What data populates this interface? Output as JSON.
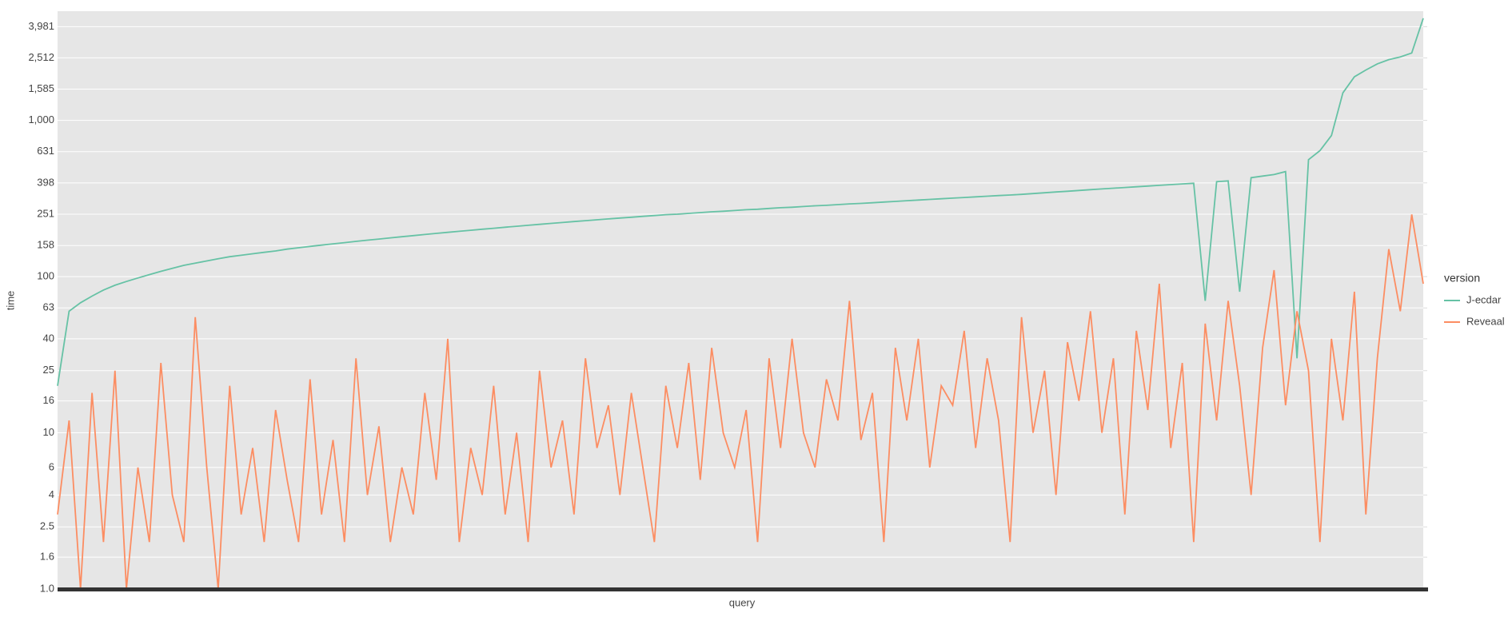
{
  "chart_data": {
    "type": "line",
    "x_label": "query",
    "y_label": "time",
    "legend_title": "version",
    "log_scale": true,
    "grid": true,
    "ylim": [
      1,
      5000
    ],
    "yticks": [
      {
        "value": 1,
        "label": "1.0"
      },
      1.6,
      2.5,
      4,
      6,
      10,
      16,
      25,
      40,
      63,
      100,
      158,
      251,
      398,
      631,
      {
        "value": 1000,
        "label": "1,000"
      },
      {
        "value": 1585,
        "label": "1,585"
      },
      {
        "value": 2512,
        "label": "2,512"
      },
      {
        "value": 3981,
        "label": "3,981"
      }
    ],
    "categories": [
      null,
      null,
      null,
      null,
      null,
      null,
      null,
      null,
      null,
      null,
      null,
      null,
      null,
      null,
      null,
      null,
      null,
      null,
      null,
      null,
      null,
      null,
      null,
      null,
      null,
      null,
      null,
      null,
      null,
      null,
      null,
      null,
      null,
      null,
      null,
      null,
      null,
      null,
      null,
      null,
      null,
      null,
      null,
      null,
      null,
      null,
      null,
      null,
      null,
      null,
      null,
      null,
      null,
      null,
      null,
      null,
      null,
      null,
      null,
      null,
      null,
      null,
      null,
      null,
      null,
      null,
      null,
      null,
      null,
      null,
      null,
      null,
      null,
      null,
      null,
      null,
      null,
      null,
      null,
      null,
      null,
      null,
      null,
      null,
      null,
      null,
      null,
      null,
      null,
      null,
      null,
      null,
      null,
      null,
      null,
      null,
      null,
      null,
      null,
      null,
      null,
      null,
      null,
      null,
      null,
      null,
      null,
      null,
      null,
      null,
      null,
      null,
      null,
      null,
      null,
      null,
      null,
      null,
      null,
      null
    ],
    "series": [
      {
        "name": "J-ecdar",
        "color": "#66c2a5",
        "values": [
          20,
          60,
          68,
          75,
          82,
          88,
          93,
          98,
          103,
          108,
          113,
          118,
          122,
          126,
          130,
          134,
          137,
          140,
          143,
          146,
          150,
          153,
          156,
          159,
          162,
          165,
          168,
          171,
          174,
          177,
          180,
          183,
          186,
          189,
          192,
          195,
          198,
          201,
          204,
          207,
          210,
          213,
          216,
          219,
          222,
          225,
          228,
          231,
          234,
          237,
          240,
          243,
          246,
          249,
          251,
          254,
          257,
          260,
          262,
          265,
          268,
          270,
          273,
          276,
          278,
          281,
          284,
          286,
          289,
          292,
          294,
          297,
          300,
          303,
          306,
          309,
          312,
          315,
          318,
          321,
          324,
          327,
          330,
          333,
          336,
          340,
          344,
          348,
          352,
          356,
          360,
          364,
          368,
          372,
          376,
          380,
          384,
          388,
          392,
          396,
          70,
          405,
          410,
          80,
          430,
          440,
          450,
          470,
          30,
          560,
          640,
          800,
          1500,
          1900,
          2100,
          2300,
          2450,
          2550,
          2700,
          4500
        ]
      },
      {
        "name": "Reveaal",
        "color": "#fc8d62",
        "values": [
          3,
          12,
          1,
          18,
          2,
          25,
          1,
          6,
          2,
          28,
          4,
          2,
          55,
          6,
          1,
          20,
          3,
          8,
          2,
          14,
          5,
          2,
          22,
          3,
          9,
          2,
          30,
          4,
          11,
          2,
          6,
          3,
          18,
          5,
          40,
          2,
          8,
          4,
          20,
          3,
          10,
          2,
          25,
          6,
          12,
          3,
          30,
          8,
          15,
          4,
          18,
          6,
          2,
          20,
          8,
          28,
          5,
          35,
          10,
          6,
          14,
          2,
          30,
          8,
          40,
          10,
          6,
          22,
          12,
          70,
          9,
          18,
          2,
          35,
          12,
          40,
          6,
          20,
          15,
          45,
          8,
          30,
          12,
          2,
          55,
          10,
          25,
          4,
          38,
          16,
          60,
          10,
          30,
          3,
          45,
          14,
          90,
          8,
          28,
          2,
          50,
          12,
          70,
          20,
          4,
          35,
          110,
          15,
          60,
          25,
          2,
          40,
          12,
          80,
          3,
          30,
          150,
          60,
          250,
          90
        ]
      }
    ]
  }
}
